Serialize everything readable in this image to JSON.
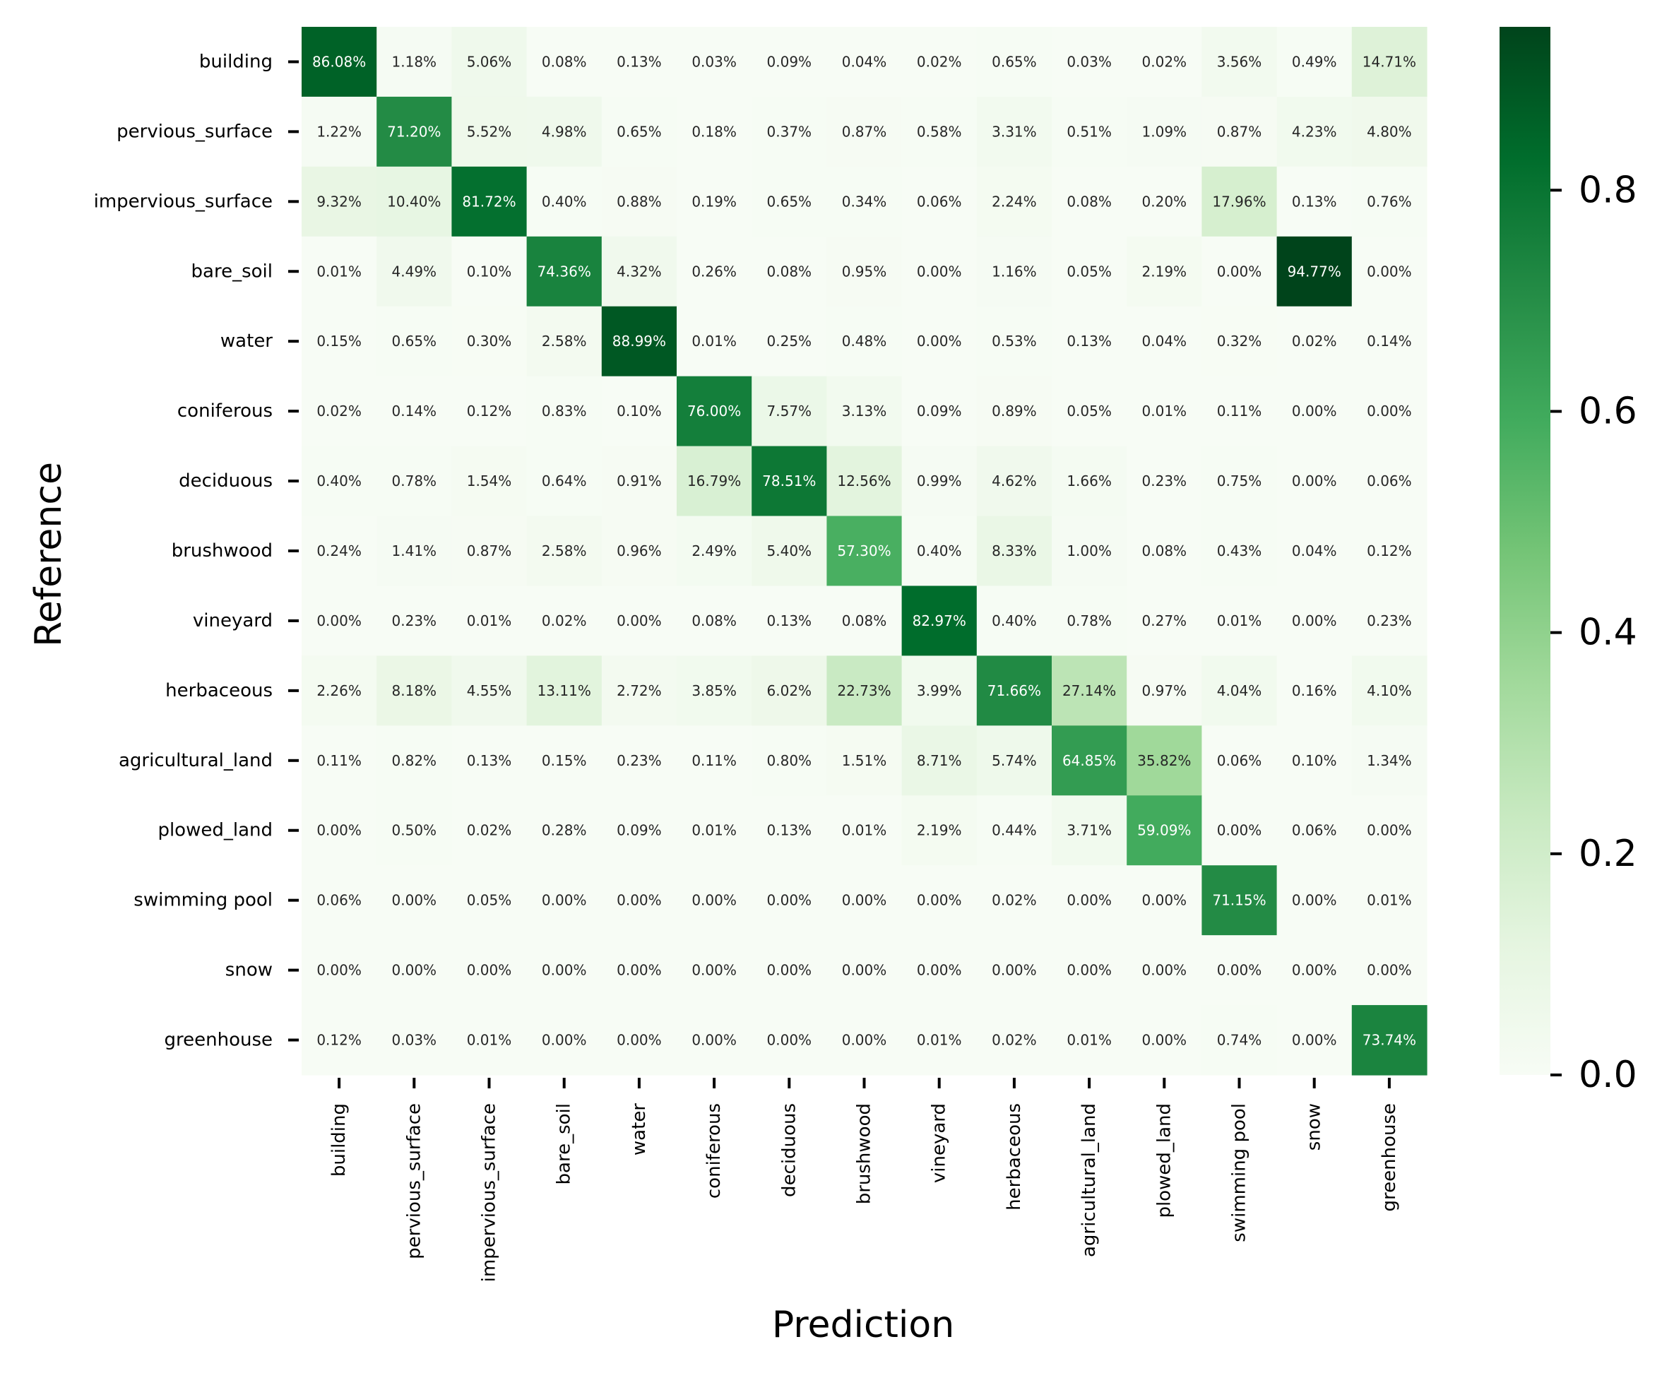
{
  "chart_data": {
    "type": "heatmap",
    "title": "",
    "xlabel": "Prediction",
    "ylabel": "Reference",
    "columns": [
      "building",
      "pervious_surface",
      "impervious_surface",
      "bare_soil",
      "water",
      "coniferous",
      "deciduous",
      "brushwood",
      "vineyard",
      "herbaceous",
      "agricultural_land",
      "plowed_land",
      "swimming pool",
      "snow",
      "greenhouse"
    ],
    "rows": [
      "building",
      "pervious_surface",
      "impervious_surface",
      "bare_soil",
      "water",
      "coniferous",
      "deciduous",
      "brushwood",
      "vineyard",
      "herbaceous",
      "agricultural_land",
      "plowed_land",
      "swimming pool",
      "snow",
      "greenhouse"
    ],
    "values": [
      [
        86.08,
        1.18,
        5.06,
        0.08,
        0.13,
        0.03,
        0.09,
        0.04,
        0.02,
        0.65,
        0.03,
        0.02,
        3.56,
        0.49,
        14.71
      ],
      [
        1.22,
        71.2,
        5.52,
        4.98,
        0.65,
        0.18,
        0.37,
        0.87,
        0.58,
        3.31,
        0.51,
        1.09,
        0.87,
        4.23,
        4.8
      ],
      [
        9.32,
        10.4,
        81.72,
        0.4,
        0.88,
        0.19,
        0.65,
        0.34,
        0.06,
        2.24,
        0.08,
        0.2,
        17.96,
        0.13,
        0.76
      ],
      [
        0.01,
        4.49,
        0.1,
        74.36,
        4.32,
        0.26,
        0.08,
        0.95,
        0.0,
        1.16,
        0.05,
        2.19,
        0.0,
        94.77,
        0.0
      ],
      [
        0.15,
        0.65,
        0.3,
        2.58,
        88.99,
        0.01,
        0.25,
        0.48,
        0.0,
        0.53,
        0.13,
        0.04,
        0.32,
        0.02,
        0.14
      ],
      [
        0.02,
        0.14,
        0.12,
        0.83,
        0.1,
        76.0,
        7.57,
        3.13,
        0.09,
        0.89,
        0.05,
        0.01,
        0.11,
        0.0,
        0.0
      ],
      [
        0.4,
        0.78,
        1.54,
        0.64,
        0.91,
        16.79,
        78.51,
        12.56,
        0.99,
        4.62,
        1.66,
        0.23,
        0.75,
        0.0,
        0.06
      ],
      [
        0.24,
        1.41,
        0.87,
        2.58,
        0.96,
        2.49,
        5.4,
        57.3,
        0.4,
        8.33,
        1.0,
        0.08,
        0.43,
        0.04,
        0.12
      ],
      [
        0.0,
        0.23,
        0.01,
        0.02,
        0.0,
        0.08,
        0.13,
        0.08,
        82.97,
        0.4,
        0.78,
        0.27,
        0.01,
        0.0,
        0.23
      ],
      [
        2.26,
        8.18,
        4.55,
        13.11,
        2.72,
        3.85,
        6.02,
        22.73,
        3.99,
        71.66,
        27.14,
        0.97,
        4.04,
        0.16,
        4.1
      ],
      [
        0.11,
        0.82,
        0.13,
        0.15,
        0.23,
        0.11,
        0.8,
        1.51,
        8.71,
        5.74,
        64.85,
        35.82,
        0.06,
        0.1,
        1.34
      ],
      [
        0.0,
        0.5,
        0.02,
        0.28,
        0.09,
        0.01,
        0.13,
        0.01,
        2.19,
        0.44,
        3.71,
        59.09,
        0.0,
        0.06,
        0.0
      ],
      [
        0.06,
        0.0,
        0.05,
        0.0,
        0.0,
        0.0,
        0.0,
        0.0,
        0.0,
        0.02,
        0.0,
        0.0,
        71.15,
        0.0,
        0.01
      ],
      [
        0.0,
        0.0,
        0.0,
        0.0,
        0.0,
        0.0,
        0.0,
        0.0,
        0.0,
        0.0,
        0.0,
        0.0,
        0.0,
        0.0,
        0.0
      ],
      [
        0.12,
        0.03,
        0.01,
        0.0,
        0.0,
        0.0,
        0.0,
        0.0,
        0.01,
        0.02,
        0.01,
        0.0,
        0.74,
        0.0,
        73.74
      ]
    ],
    "value_format": "percent",
    "colormap": "Greens",
    "colorbar": {
      "range": [
        0,
        0.9477
      ],
      "ticks": [
        0.0,
        0.2,
        0.4,
        0.6,
        0.8
      ],
      "tick_labels": [
        "0.0",
        "0.2",
        "0.4",
        "0.6",
        "0.8"
      ]
    },
    "legend": "colorbar-right",
    "grid": false
  }
}
